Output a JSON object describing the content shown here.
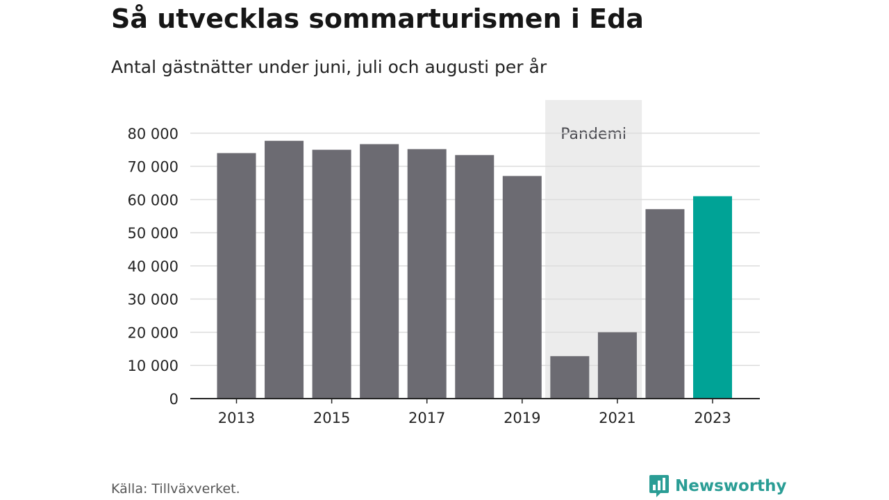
{
  "header": {
    "title": "Så utvecklas sommarturismen i Eda",
    "subtitle": "Antal gästnätter under juni, juli och augusti per år"
  },
  "footer": {
    "source": "Källa: Tillväxverket.",
    "brand": "Newsworthy",
    "brand_icon": "bar-chart-speech-bubble-icon"
  },
  "colors": {
    "bar": "#6c6b72",
    "highlight": "#00a396",
    "band": "#ececec",
    "grid": "#dcdcdc",
    "axis": "#222222",
    "text": "#222222",
    "brand": "#2a9d95"
  },
  "chart_data": {
    "type": "bar",
    "title": "Så utvecklas sommarturismen i Eda",
    "subtitle": "Antal gästnätter under juni, juli och augusti per år",
    "categories": [
      "2013",
      "2014",
      "2015",
      "2016",
      "2017",
      "2018",
      "2019",
      "2020",
      "2021",
      "2022",
      "2023"
    ],
    "values": [
      74000,
      77700,
      75000,
      76700,
      75200,
      73400,
      67100,
      12800,
      20000,
      57100,
      61000
    ],
    "highlight_category": "2023",
    "x_tick_labels": [
      "2013",
      "2015",
      "2017",
      "2019",
      "2021",
      "2023"
    ],
    "y_ticks": [
      0,
      10000,
      20000,
      30000,
      40000,
      50000,
      60000,
      70000,
      80000
    ],
    "y_tick_labels": [
      "0",
      "10 000",
      "20 000",
      "30 000",
      "40 000",
      "50 000",
      "60 000",
      "70 000",
      "80 000"
    ],
    "ylim": [
      0,
      90000
    ],
    "xlabel": "",
    "ylabel": "",
    "grid": true,
    "legend": "none",
    "annotations": [
      {
        "type": "band",
        "label": "Pandemi",
        "from": "2020",
        "to": "2021"
      }
    ]
  }
}
